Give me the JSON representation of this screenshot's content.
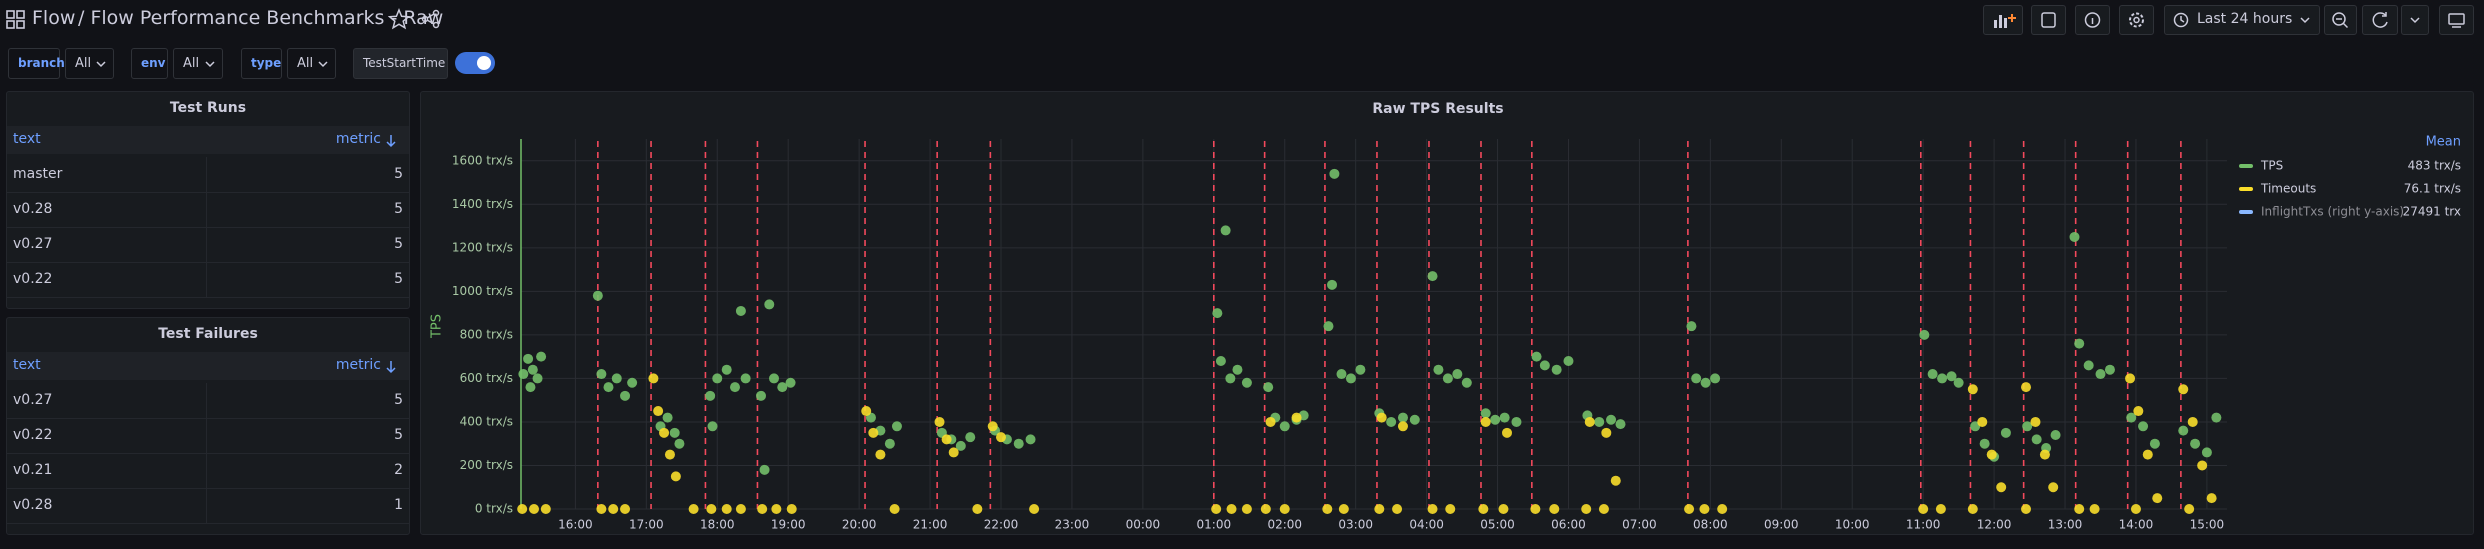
{
  "header": {
    "home": "Flow",
    "title": "/ Flow Performance Benchmarks - Raw",
    "time_range": "Last 24 hours"
  },
  "filters": [
    {
      "label": "branch",
      "value": "All"
    },
    {
      "label": "env",
      "value": "All"
    },
    {
      "label": "type",
      "value": "All"
    },
    {
      "label": "TestStartTime"
    }
  ],
  "tables": [
    {
      "title": "Test Runs",
      "columns": [
        "text",
        "metric"
      ],
      "rows": [
        [
          "master",
          5
        ],
        [
          "v0.28",
          5
        ],
        [
          "v0.27",
          5
        ],
        [
          "v0.22",
          5
        ]
      ]
    },
    {
      "title": "Test Failures",
      "columns": [
        "text",
        "metric"
      ],
      "rows": [
        [
          "v0.27",
          5
        ],
        [
          "v0.22",
          5
        ],
        [
          "v0.21",
          2
        ],
        [
          "v0.28",
          1
        ]
      ]
    }
  ],
  "chart_data": {
    "type": "scatter",
    "title": "Raw TPS Results",
    "y_label": "TPS",
    "legend_header": "Mean",
    "xlim": [
      "15:14",
      "15:17"
    ],
    "xticks": [
      "16:00",
      "17:00",
      "18:00",
      "19:00",
      "20:00",
      "21:00",
      "22:00",
      "23:00",
      "00:00",
      "01:00",
      "02:00",
      "03:00",
      "04:00",
      "05:00",
      "06:00",
      "07:00",
      "08:00",
      "09:00",
      "10:00",
      "11:00",
      "12:00",
      "13:00",
      "14:00",
      "15:00"
    ],
    "ylim": [
      0,
      1700
    ],
    "yticks": [
      {
        "value": 0,
        "label": "0 trx/s"
      },
      {
        "value": 200,
        "label": "200 trx/s"
      },
      {
        "value": 400,
        "label": "400 trx/s"
      },
      {
        "value": 600,
        "label": "600 trx/s"
      },
      {
        "value": 800,
        "label": "800 trx/s"
      },
      {
        "value": 1000,
        "label": "1000 trx/s"
      },
      {
        "value": 1200,
        "label": "1200 trx/s"
      },
      {
        "value": 1400,
        "label": "1400 trx/s"
      },
      {
        "value": 1600,
        "label": "1600 trx/s"
      }
    ],
    "grid": true,
    "annotations": [
      "16:19",
      "17:04",
      "17:50",
      "18:34",
      "20:05",
      "21:06",
      "21:51",
      "01:00",
      "01:43",
      "02:34",
      "03:18",
      "04:02",
      "04:46",
      "05:29",
      "07:41",
      "10:58",
      "11:40",
      "12:25",
      "13:09",
      "13:53",
      "14:38"
    ],
    "series": [
      {
        "name": "TPS",
        "color": "#73bf69",
        "mean": "483 trx/s",
        "x": [
          "15:16",
          "15:20",
          "15:24",
          "15:28",
          "15:31",
          "15:22",
          "16:19",
          "16:22",
          "16:28",
          "16:35",
          "16:42",
          "16:48",
          "17:12",
          "17:18",
          "17:24",
          "17:28",
          "17:54",
          "18:00",
          "18:08",
          "18:15",
          "18:20",
          "18:24",
          "17:56",
          "18:37",
          "18:44",
          "18:48",
          "18:55",
          "19:02",
          "18:40",
          "20:10",
          "20:18",
          "20:26",
          "20:32",
          "21:10",
          "21:18",
          "21:26",
          "21:34",
          "21:55",
          "22:05",
          "22:15",
          "22:25",
          "01:03",
          "01:06",
          "01:10",
          "01:14",
          "01:20",
          "01:28",
          "01:46",
          "01:52",
          "02:00",
          "02:10",
          "02:16",
          "02:37",
          "02:40",
          "02:42",
          "02:48",
          "02:56",
          "03:04",
          "03:20",
          "03:30",
          "03:40",
          "03:50",
          "04:05",
          "04:10",
          "04:18",
          "04:26",
          "04:34",
          "04:50",
          "04:58",
          "05:06",
          "05:16",
          "05:33",
          "05:40",
          "05:50",
          "06:00",
          "06:16",
          "06:26",
          "06:36",
          "06:44",
          "07:44",
          "07:48",
          "07:56",
          "08:04",
          "11:01",
          "11:08",
          "11:16",
          "11:24",
          "11:30",
          "11:44",
          "11:52",
          "12:00",
          "12:10",
          "12:28",
          "12:36",
          "12:44",
          "12:52",
          "13:08",
          "13:12",
          "13:20",
          "13:30",
          "13:38",
          "13:56",
          "14:06",
          "14:16",
          "14:40",
          "14:50",
          "15:00",
          "15:08"
        ],
        "values": [
          620,
          690,
          640,
          600,
          700,
          560,
          980,
          620,
          560,
          600,
          520,
          580,
          380,
          420,
          350,
          300,
          520,
          600,
          640,
          560,
          910,
          600,
          380,
          520,
          940,
          600,
          560,
          580,
          180,
          420,
          360,
          300,
          380,
          350,
          320,
          290,
          330,
          360,
          320,
          300,
          320,
          900,
          680,
          1280,
          600,
          640,
          580,
          560,
          420,
          380,
          410,
          430,
          840,
          1030,
          1540,
          620,
          600,
          640,
          440,
          400,
          420,
          410,
          1070,
          640,
          600,
          620,
          580,
          440,
          410,
          420,
          400,
          700,
          660,
          640,
          680,
          430,
          400,
          410,
          390,
          840,
          600,
          580,
          600,
          800,
          620,
          600,
          610,
          580,
          380,
          300,
          240,
          350,
          380,
          320,
          280,
          340,
          1250,
          760,
          660,
          620,
          640,
          420,
          380,
          300,
          360,
          300,
          260,
          420
        ]
      },
      {
        "name": "Timeouts",
        "color": "#fade2a",
        "mean": "76.1 trx/s",
        "x": [
          "15:15",
          "15:25",
          "15:35",
          "16:22",
          "16:32",
          "16:42",
          "17:40",
          "17:55",
          "18:08",
          "18:20",
          "18:38",
          "18:50",
          "19:03",
          "20:30",
          "21:40",
          "22:28",
          "01:02",
          "01:15",
          "01:28",
          "01:44",
          "02:00",
          "02:36",
          "02:50",
          "03:20",
          "03:35",
          "04:05",
          "04:20",
          "04:48",
          "05:05",
          "05:32",
          "05:48",
          "06:15",
          "06:30",
          "07:42",
          "07:55",
          "08:10",
          "11:00",
          "11:15",
          "11:42",
          "12:27",
          "13:12",
          "13:25",
          "14:00",
          "14:45",
          "17:06",
          "17:10",
          "17:15",
          "17:20",
          "17:25",
          "20:06",
          "20:12",
          "20:18",
          "21:08",
          "21:14",
          "21:20",
          "21:53",
          "22:00",
          "01:48",
          "02:10",
          "03:22",
          "03:40",
          "04:50",
          "05:08",
          "06:18",
          "06:32",
          "06:40",
          "11:42",
          "11:50",
          "11:58",
          "12:06",
          "12:27",
          "12:35",
          "12:43",
          "12:50",
          "13:55",
          "14:02",
          "14:10",
          "14:18",
          "14:40",
          "14:48",
          "14:56",
          "15:04"
        ],
        "values": [
          0,
          0,
          0,
          0,
          0,
          0,
          0,
          0,
          0,
          0,
          0,
          0,
          0,
          0,
          0,
          0,
          0,
          0,
          0,
          0,
          0,
          0,
          0,
          0,
          0,
          0,
          0,
          0,
          0,
          0,
          0,
          0,
          0,
          0,
          0,
          0,
          0,
          0,
          0,
          0,
          0,
          0,
          0,
          0,
          600,
          450,
          350,
          250,
          150,
          450,
          350,
          250,
          400,
          320,
          260,
          380,
          330,
          400,
          420,
          420,
          380,
          400,
          350,
          400,
          350,
          130,
          550,
          400,
          250,
          100,
          560,
          400,
          250,
          100,
          600,
          450,
          250,
          50,
          550,
          400,
          200,
          50
        ]
      },
      {
        "name": "InflightTxs (right y-axis)",
        "color": "#8ab8ff",
        "mean": "27491 trx",
        "x": [],
        "values": []
      }
    ]
  }
}
